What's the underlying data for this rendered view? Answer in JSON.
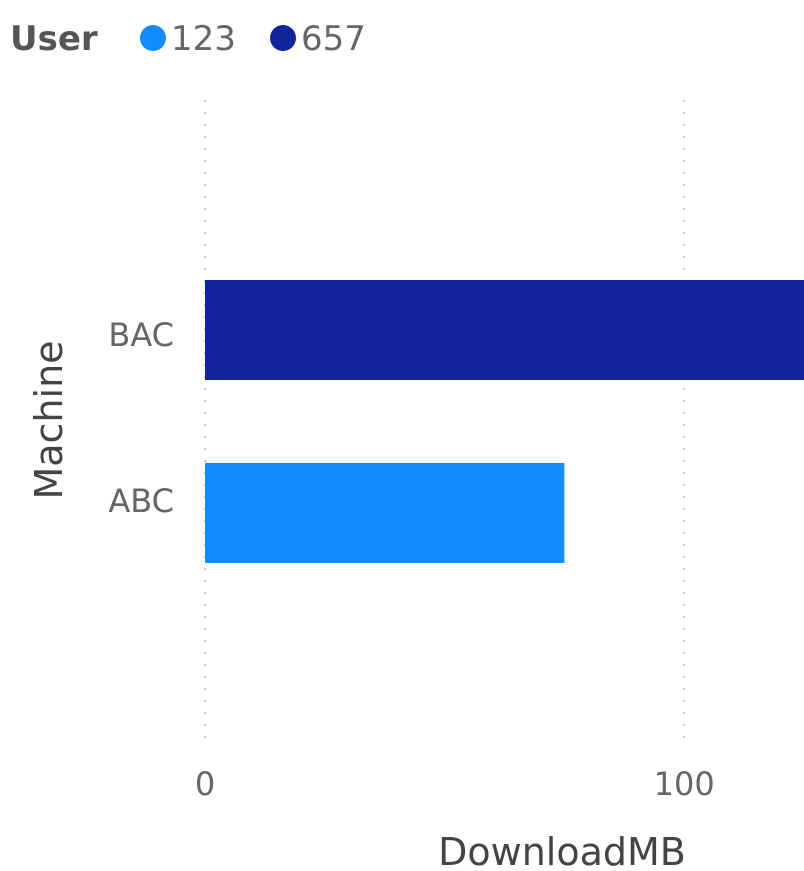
{
  "chart_data": {
    "type": "bar",
    "orientation": "horizontal",
    "categories": [
      "BAC",
      "ABC"
    ],
    "values": [
      125,
      75
    ],
    "series": [
      {
        "name": "657",
        "category": "BAC",
        "value": 125
      },
      {
        "name": "123",
        "category": "ABC",
        "value": 75
      }
    ],
    "xlabel": "DownloadMB",
    "ylabel": "Machine",
    "xlim": [
      0,
      125
    ],
    "xticks": [
      0,
      100
    ],
    "grid": true,
    "legend": {
      "title": "User",
      "position": "top-left",
      "items": [
        {
          "label": "123",
          "color": "#118dff"
        },
        {
          "label": "657",
          "color": "#12239e"
        }
      ]
    }
  }
}
